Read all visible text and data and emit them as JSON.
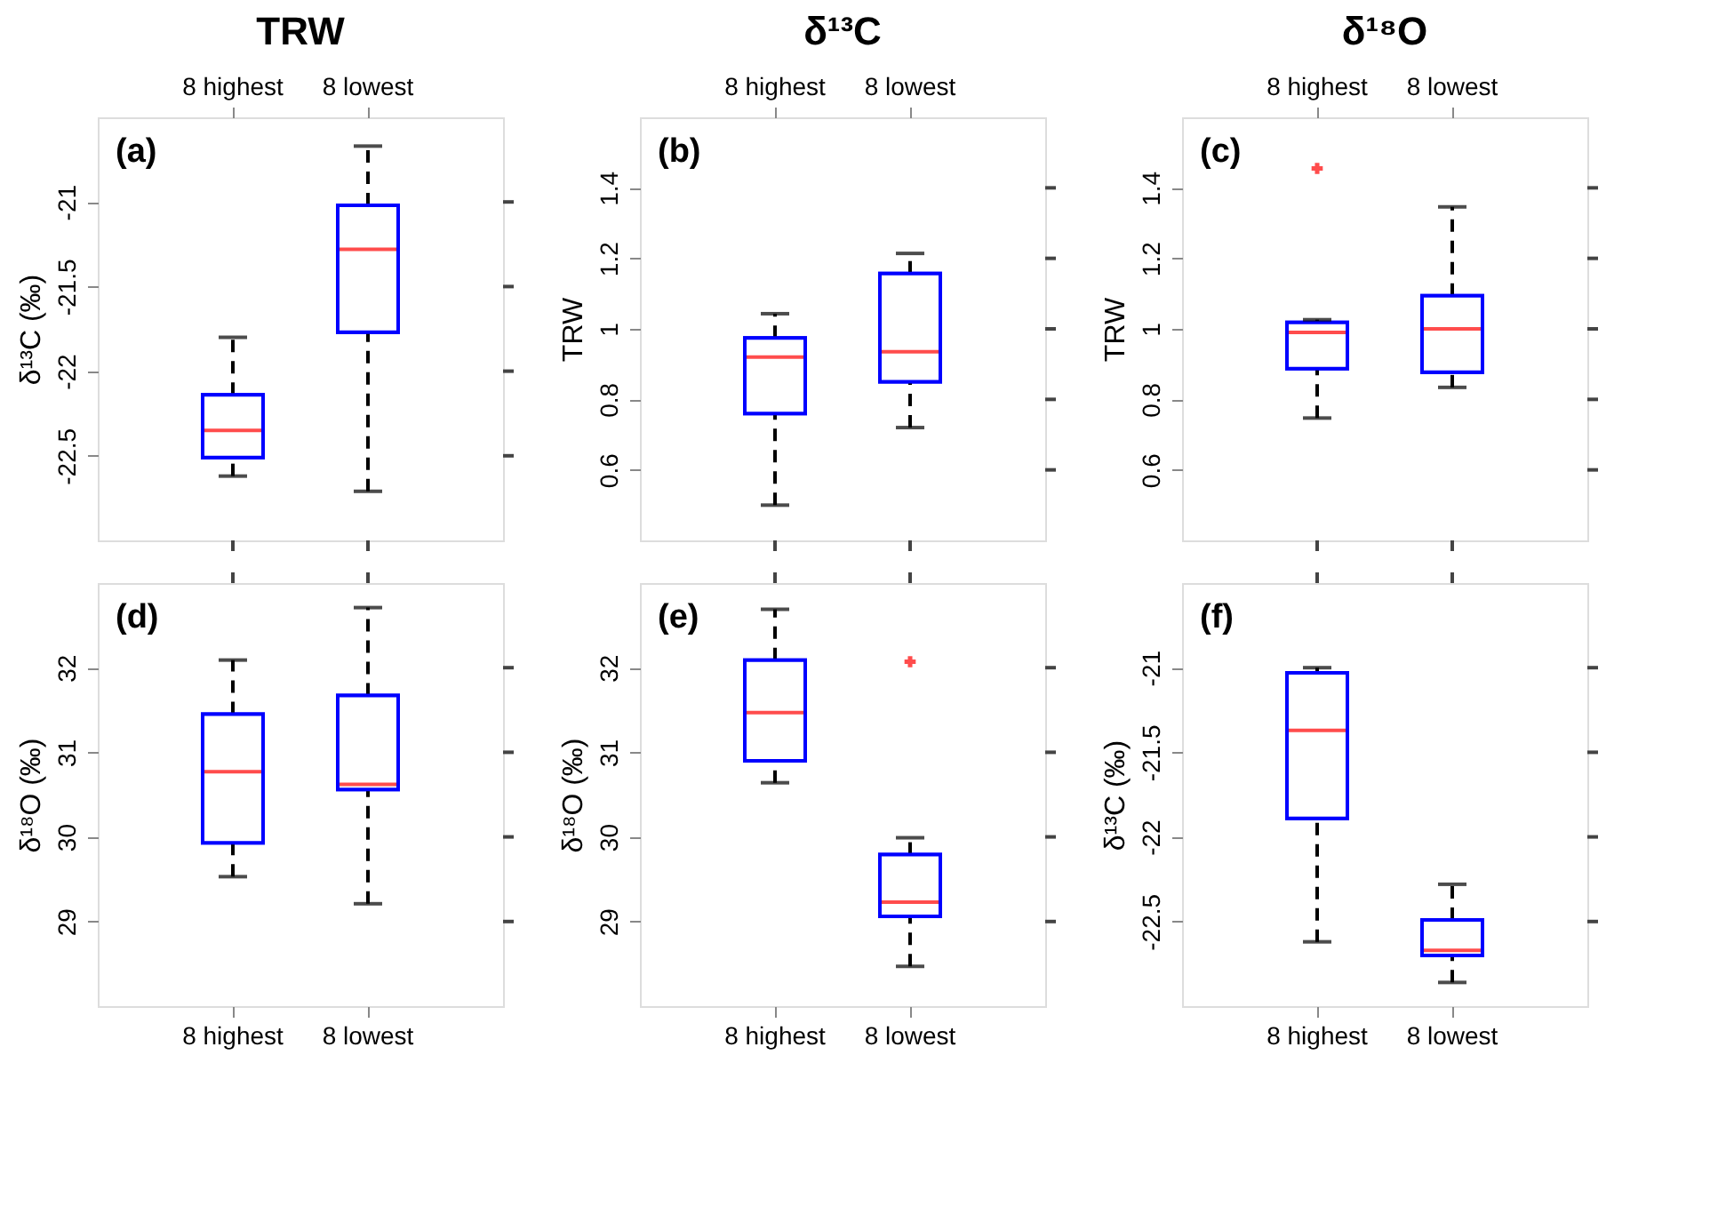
{
  "chart_data": [
    {
      "type": "box",
      "title": "TRW",
      "categories": [
        "8 highest",
        "8 lowest"
      ],
      "ylabel": "δ¹³C (‰)",
      "ylim": [
        -23,
        -20.5
      ],
      "yticks": [
        -22.5,
        -22,
        -21.5,
        -21
      ],
      "color": "#0000ff",
      "annotations": [
        "(a)"
      ],
      "boxes": [
        {
          "low": -22.62,
          "q1": -22.51,
          "median": -22.35,
          "q3": -22.14,
          "high": -21.8
        },
        {
          "low": -22.71,
          "q1": -21.77,
          "median": -21.28,
          "q3": -21.02,
          "high": -20.67
        }
      ]
    },
    {
      "type": "box",
      "title": "δ¹³C",
      "categories": [
        "8 highest",
        "8 lowest"
      ],
      "ylabel": "TRW",
      "ylim": [
        0.4,
        1.6
      ],
      "yticks": [
        0.6,
        0.8,
        1,
        1.2,
        1.4
      ],
      "color": "#0000ff",
      "annotations": [
        "(b)"
      ],
      "boxes": [
        {
          "low": 0.5,
          "q1": 0.76,
          "median": 0.92,
          "q3": 0.974,
          "high": 1.043
        },
        {
          "low": 0.72,
          "q1": 0.85,
          "median": 0.935,
          "q3": 1.157,
          "high": 1.214
        }
      ]
    },
    {
      "type": "box",
      "title": "δ¹⁸O",
      "categories": [
        "8 highest",
        "8 lowest"
      ],
      "ylabel": "TRW",
      "ylim": [
        0.4,
        1.6
      ],
      "yticks": [
        0.6,
        0.8,
        1,
        1.2,
        1.4
      ],
      "color": "#0000ff",
      "annotations": [
        "(c)"
      ],
      "boxes": [
        {
          "low": 0.747,
          "q1": 0.887,
          "median": 0.99,
          "q3": 1.018,
          "high": 1.026,
          "outliers": [
            1.455
          ]
        },
        {
          "low": 0.834,
          "q1": 0.877,
          "median": 1.0,
          "q3": 1.094,
          "high": 1.346
        }
      ]
    },
    {
      "type": "box",
      "categories": [
        "8 highest",
        "8 lowest"
      ],
      "ylabel": "δ¹⁸O (‰)",
      "ylim": [
        28,
        33
      ],
      "yticks": [
        29,
        30,
        31,
        32
      ],
      "color": "#0000ff",
      "annotations": [
        "(d)"
      ],
      "boxes": [
        {
          "low": 29.53,
          "q1": 29.93,
          "median": 30.77,
          "q3": 31.45,
          "high": 32.09
        },
        {
          "low": 29.21,
          "q1": 30.56,
          "median": 30.62,
          "q3": 31.67,
          "high": 32.71
        }
      ]
    },
    {
      "type": "box",
      "categories": [
        "8 highest",
        "8 lowest"
      ],
      "ylabel": "δ¹⁸O (‰)",
      "ylim": [
        28,
        33
      ],
      "yticks": [
        29,
        30,
        31,
        32
      ],
      "color": "#0000ff",
      "annotations": [
        "(e)"
      ],
      "boxes": [
        {
          "low": 30.64,
          "q1": 30.9,
          "median": 31.47,
          "q3": 32.09,
          "high": 32.69
        },
        {
          "low": 28.47,
          "q1": 29.06,
          "median": 29.23,
          "q3": 29.79,
          "high": 29.99,
          "outliers": [
            32.07
          ]
        }
      ]
    },
    {
      "type": "box",
      "categories": [
        "8 highest",
        "8 lowest"
      ],
      "ylabel": "δ¹³C (‰)",
      "ylim": [
        -23,
        -20.5
      ],
      "yticks": [
        -22.5,
        -22,
        -21.5,
        -21
      ],
      "color": "#0000ff",
      "annotations": [
        "(f)"
      ],
      "boxes": [
        {
          "low": -22.62,
          "q1": -21.89,
          "median": -21.37,
          "q3": -21.03,
          "high": -21.0
        },
        {
          "low": -22.86,
          "q1": -22.7,
          "median": -22.67,
          "q3": -22.49,
          "high": -22.28
        }
      ]
    }
  ]
}
